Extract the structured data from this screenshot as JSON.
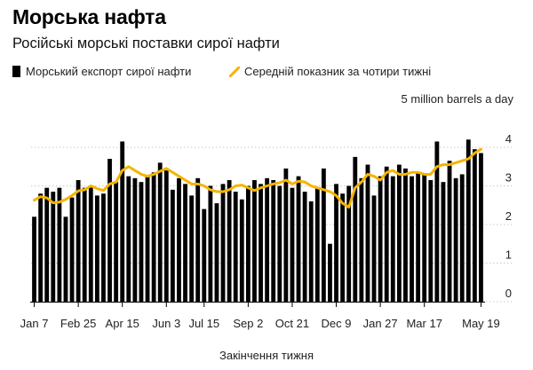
{
  "title": "Морська нафта",
  "subtitle": "Російські морські поставки сирої нафти",
  "legend": {
    "bars": "Морський експорт сирої нафти",
    "line": "Середній показник за чотири тижні"
  },
  "colors": {
    "bars": "#000000",
    "line": "#f5b400",
    "grid": "#c9c9c9"
  },
  "chart_data": {
    "type": "bar",
    "ylabel": "5 million barrels a day",
    "xlabel": "Закінчення тижня",
    "ylim": [
      0,
      5
    ],
    "yticks": [
      0,
      1,
      2,
      3,
      4
    ],
    "yticks_text": [
      "0",
      "1",
      "2",
      "3",
      "4"
    ],
    "grid": "horizontal dotted",
    "legend_position": "top",
    "xtick_labels": [
      {
        "index": 0,
        "label": "Jan 7"
      },
      {
        "index": 7,
        "label": "Feb 25"
      },
      {
        "index": 14,
        "label": "Apr 15"
      },
      {
        "index": 21,
        "label": "Jun 3"
      },
      {
        "index": 27,
        "label": "Jul 15"
      },
      {
        "index": 34,
        "label": "Sep 2"
      },
      {
        "index": 41,
        "label": "Oct 21"
      },
      {
        "index": 48,
        "label": "Dec 9"
      },
      {
        "index": 55,
        "label": "Jan 27"
      },
      {
        "index": 62,
        "label": "Mar 17"
      },
      {
        "index": 71,
        "label": "May 19"
      }
    ],
    "series": [
      {
        "type": "bar",
        "values": [
          2.2,
          2.8,
          2.95,
          2.85,
          2.95,
          2.2,
          2.7,
          3.15,
          2.95,
          3.0,
          2.75,
          2.8,
          3.7,
          3.1,
          4.15,
          3.25,
          3.2,
          3.1,
          3.25,
          3.35,
          3.6,
          3.4,
          2.9,
          3.2,
          3.05,
          2.75,
          3.2,
          2.4,
          3.0,
          2.55,
          3.05,
          3.15,
          2.85,
          2.65,
          3.0,
          3.15,
          3.05,
          3.2,
          3.15,
          3.0,
          3.45,
          2.95,
          3.25,
          2.85,
          2.6,
          2.95,
          3.45,
          1.5,
          3.05,
          2.8,
          3.0,
          3.75,
          3.2,
          3.55,
          2.75,
          3.25,
          3.5,
          3.25,
          3.55,
          3.45,
          3.25,
          3.35,
          3.3,
          3.15,
          4.15,
          3.1,
          3.65,
          3.2,
          3.3,
          4.2,
          3.95,
          3.85
        ]
      },
      {
        "type": "line",
        "values": [
          2.63,
          2.72,
          2.69,
          2.56,
          2.58,
          2.65,
          2.75,
          2.87,
          2.9,
          3.0,
          2.93,
          2.88,
          3.05,
          3.1,
          3.4,
          3.5,
          3.4,
          3.3,
          3.25,
          3.3,
          3.38,
          3.45,
          3.35,
          3.25,
          3.15,
          3.05,
          3.05,
          3.0,
          2.9,
          2.85,
          2.85,
          2.9,
          3.0,
          3.02,
          2.95,
          2.88,
          2.95,
          3.0,
          3.05,
          3.08,
          3.15,
          3.05,
          3.12,
          3.1,
          3.0,
          2.95,
          2.9,
          2.85,
          2.75,
          2.55,
          2.45,
          2.95,
          3.1,
          3.3,
          3.25,
          3.15,
          3.35,
          3.4,
          3.3,
          3.3,
          3.35,
          3.35,
          3.3,
          3.3,
          3.5,
          3.55,
          3.55,
          3.6,
          3.65,
          3.7,
          3.85,
          3.95
        ]
      }
    ]
  }
}
